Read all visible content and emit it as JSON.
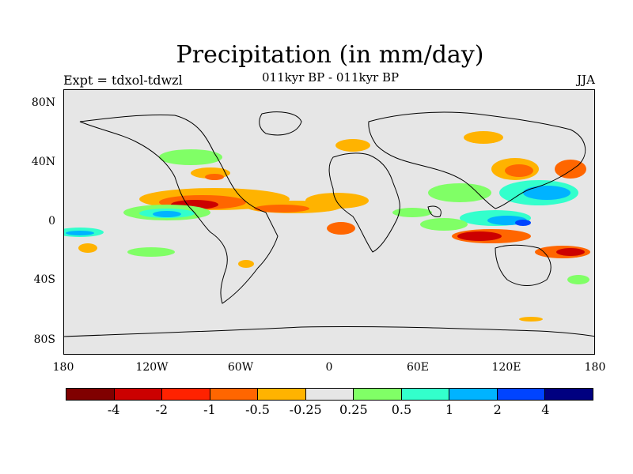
{
  "title": "Precipitation (in mm/day)",
  "expt": "Expt = tdxol-tdwzl",
  "subtitle": "011kyr BP - 011kyr BP",
  "season": "JJA",
  "y_labels": [
    "80N",
    "40N",
    "0",
    "40S",
    "80S"
  ],
  "x_labels": [
    "180",
    "120W",
    "60W",
    "0",
    "60E",
    "120E",
    "180"
  ],
  "colorbar": {
    "colors": [
      "#800000",
      "#cc0000",
      "#ff2200",
      "#ff6600",
      "#ffb300",
      "#e6e6e6",
      "#80ff66",
      "#33ffcc",
      "#00b3ff",
      "#0044ff",
      "#000080"
    ],
    "labels": [
      "-4",
      "-2",
      "-1",
      "-0.5",
      "-0.25",
      "0.25",
      "0.5",
      "1",
      "2",
      "4"
    ]
  },
  "colors": {
    "land_border": "#000000",
    "map_bg": "#e6e6e6"
  }
}
